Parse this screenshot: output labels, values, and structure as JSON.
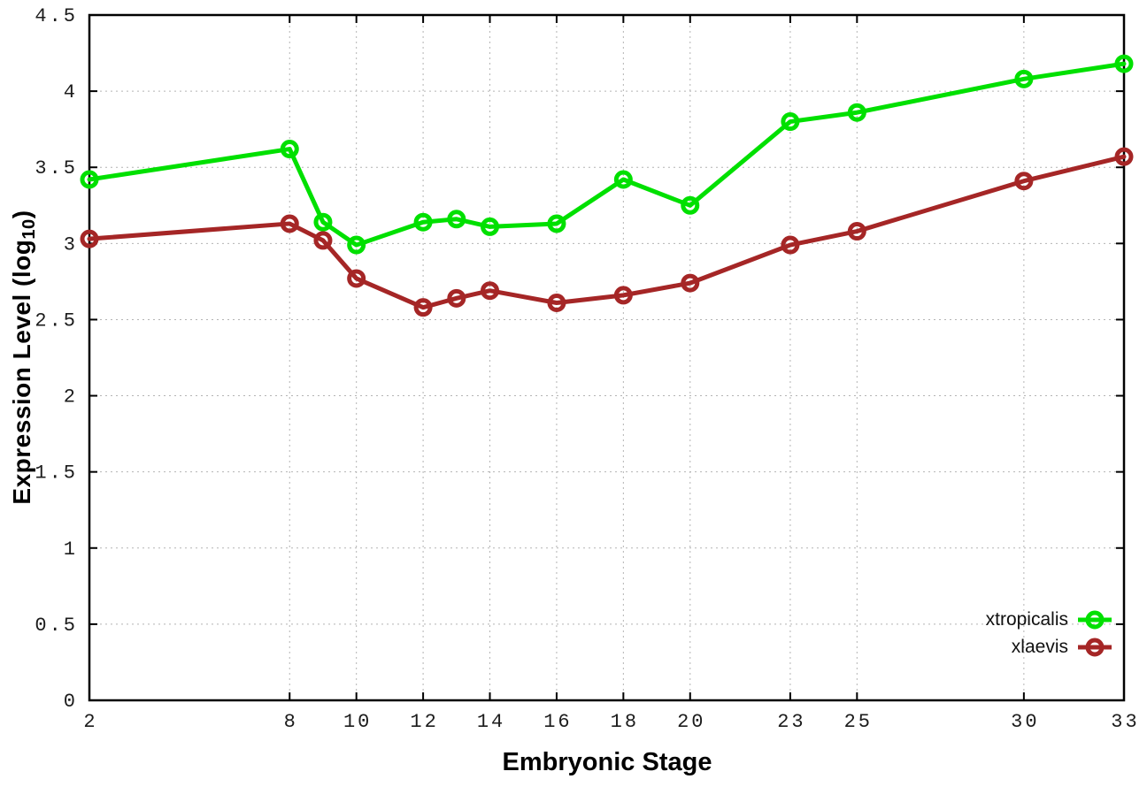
{
  "figure": {
    "background": "#ffffff",
    "border_color": "#000000",
    "grid_color": "#b4b4b4",
    "tick_label_color": "#1c1c1c"
  },
  "axes": {
    "y_label_prefix": "Expression Level (log",
    "y_label_sub": "10",
    "y_label_suffix": ")",
    "x_label": "Embryonic Stage"
  },
  "chart_data": {
    "type": "line",
    "title": "",
    "xlabel": "Embryonic Stage",
    "ylabel": "Expression Level (log10)",
    "x": [
      2,
      8,
      9,
      10,
      12,
      13,
      14,
      16,
      18,
      20,
      23,
      25,
      30,
      33
    ],
    "series": [
      {
        "name": "xtropicalis",
        "color": "#00e000",
        "values": [
          3.42,
          3.62,
          3.14,
          2.99,
          3.14,
          3.16,
          3.11,
          3.13,
          3.42,
          3.25,
          3.8,
          3.86,
          4.08,
          4.18
        ]
      },
      {
        "name": "xlaevis",
        "color": "#a52626",
        "values": [
          3.03,
          3.13,
          3.02,
          2.77,
          2.58,
          2.64,
          2.69,
          2.61,
          2.66,
          2.74,
          2.99,
          3.08,
          3.41,
          3.57
        ]
      }
    ],
    "xlim": [
      2,
      33
    ],
    "ylim": [
      0,
      4.5
    ],
    "x_ticks": [
      2,
      8,
      10,
      12,
      14,
      16,
      18,
      20,
      23,
      25,
      30,
      33
    ],
    "y_ticks": [
      0,
      0.5,
      1,
      1.5,
      2,
      2.5,
      3,
      3.5,
      4,
      4.5
    ],
    "grid": true,
    "grid_style": "dotted",
    "marker": "open-circle",
    "line_width": 5,
    "legend_position": "inside-bottom-right"
  }
}
